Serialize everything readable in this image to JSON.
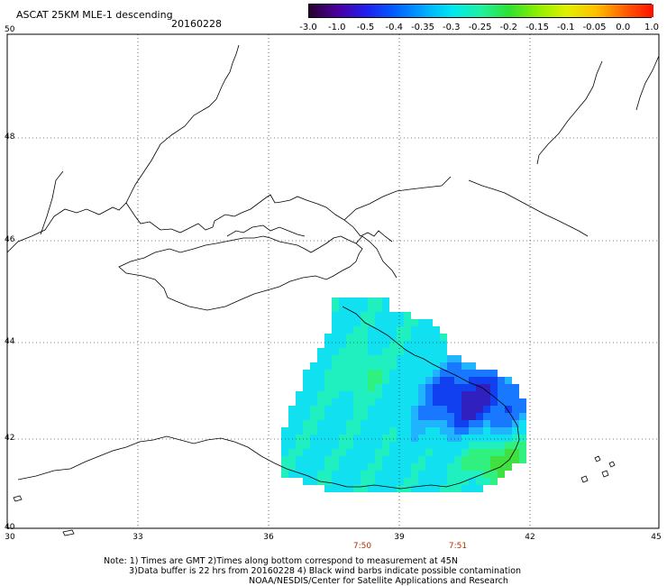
{
  "header": {
    "title": "ASCAT 25KM MLE-1 descending",
    "date": "20160228"
  },
  "colorbar": {
    "labels": [
      "-3.0",
      "-1.0",
      "-0.5",
      "-0.4",
      "-0.35",
      "-0.3",
      "-0.25",
      "-0.2",
      "-0.15",
      "-0.1",
      "-0.05",
      "0.0",
      "1.0"
    ],
    "colors": [
      "#2a0030",
      "#4a00a0",
      "#2020f0",
      "#0060ff",
      "#00a8ff",
      "#00e8f0",
      "#20f0a0",
      "#30e030",
      "#90f000",
      "#e0f000",
      "#ffc000",
      "#ff6000",
      "#ff1000"
    ]
  },
  "axes": {
    "lat_labels": [
      "50",
      "48",
      "46",
      "44",
      "42",
      "40"
    ],
    "lon_labels": [
      "30",
      "33",
      "36",
      "39",
      "42",
      "45"
    ],
    "lon_range": [
      30,
      45
    ],
    "lat_range": [
      40,
      50
    ]
  },
  "times": {
    "labels": [
      "7:50",
      "7:51"
    ]
  },
  "notes": {
    "line1": "Note: 1) Times are GMT 2)Times along bottom correspond to measurement at 45N",
    "line2": "3)Data buffer is 22 hrs from 20160228 4) Black wind barbs indicate possible contamination",
    "line3": "NOAA/NESDIS/Center for Satellite Applications and Research"
  }
}
